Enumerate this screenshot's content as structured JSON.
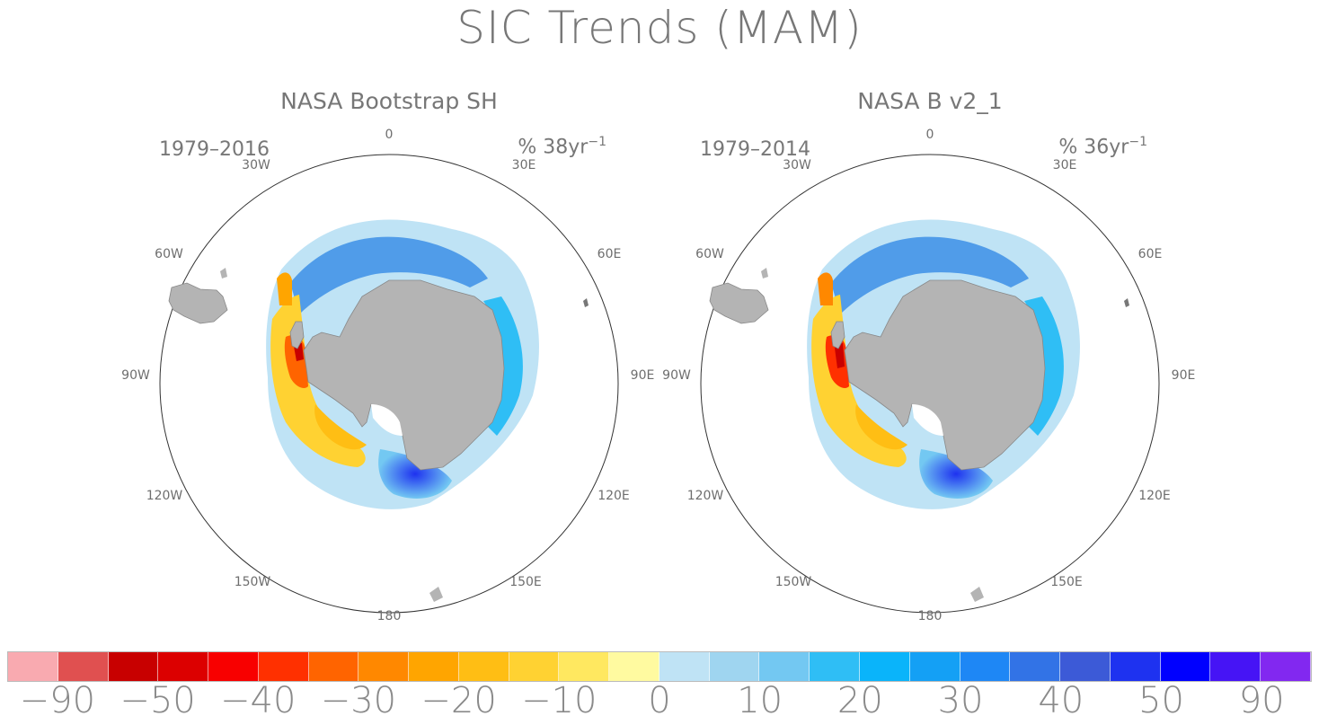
{
  "title": "SIC Trends (MAM)",
  "panels": [
    {
      "title": "NASA Bootstrap SH",
      "period": "1979–2016",
      "units_main": "% 38yr",
      "units_sup": "−1"
    },
    {
      "title": "NASA B v2_1",
      "period": "1979–2014",
      "units_main": "% 36yr",
      "units_sup": "−1"
    }
  ],
  "lon_labels": {
    "n0": "0",
    "n30e": "30E",
    "n60e": "60E",
    "n90e": "90E",
    "n120e": "120E",
    "n150e": "150E",
    "n180": "180",
    "n150w": "150W",
    "n120w": "120W",
    "n90w": "90W",
    "n60w": "60W",
    "n30w": "30W"
  },
  "colorbar": {
    "colors": [
      "#f9aab0",
      "#e05050",
      "#c80000",
      "#dc0000",
      "#f80000",
      "#ff3000",
      "#ff6400",
      "#ff8800",
      "#ffa500",
      "#ffbe14",
      "#ffd232",
      "#ffe860",
      "#fffaa0",
      "#bfe3f5",
      "#9fd5f0",
      "#73c8f2",
      "#2fbef5",
      "#0ab4fa",
      "#14a0f5",
      "#1e87f5",
      "#3273e6",
      "#3c5ad7",
      "#1e32f0",
      "#0000ff",
      "#4614f5",
      "#8228f0"
    ],
    "labels": [
      "−90",
      "−50",
      "−40",
      "−30",
      "−20",
      "−10",
      "0",
      "10",
      "20",
      "30",
      "40",
      "50",
      "90"
    ]
  },
  "legend_colors": {
    "land": "#b4b4b4",
    "ice_loss": "#ff3000",
    "ice_gain": "#1e87f5",
    "background": "#ffffff"
  }
}
